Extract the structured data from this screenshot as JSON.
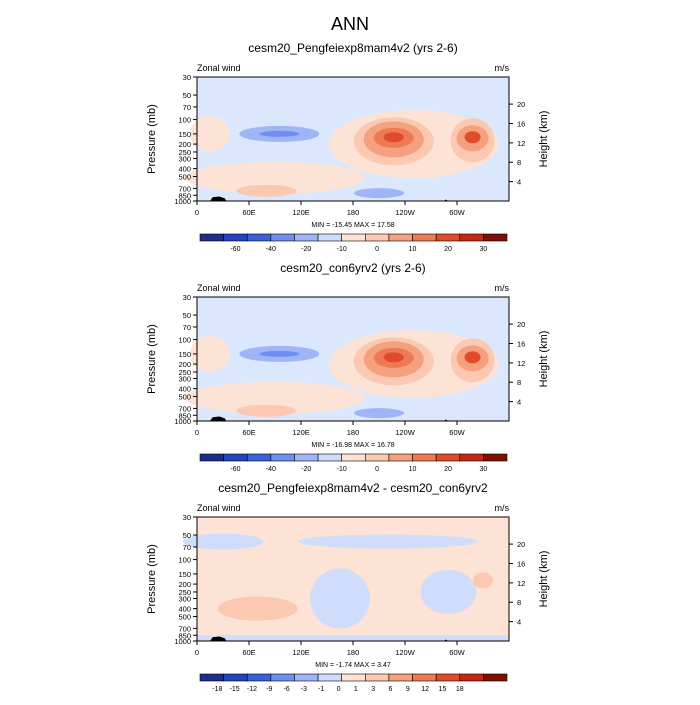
{
  "figure_title": "ANN",
  "colors": {
    "neg": [
      "#1f2d8a",
      "#2643c2",
      "#3a63da",
      "#6e8ef0",
      "#9fb5f5",
      "#cfdcfb"
    ],
    "pos": [
      "#fde3d6",
      "#fbc8b2",
      "#f5a17f",
      "#ee7a55",
      "#e24a2c",
      "#c42712",
      "#7e0f05"
    ],
    "background": "#dbe7fd",
    "terrain": "#000000"
  },
  "chart_data": [
    {
      "type": "contour",
      "title": "cesm20_Pengfeiexp8mam4v2 (yrs 2-6)",
      "left_label": "Zonal wind",
      "right_label": "m/s",
      "ylabel": "Pressure (mb)",
      "ylabel_right": "Height (km)",
      "x_ticks": [
        "0",
        "60E",
        "120E",
        "180",
        "120W",
        "60W"
      ],
      "y_ticks": [
        "30",
        "50",
        "70",
        "100",
        "150",
        "200",
        "250",
        "300",
        "400",
        "500",
        "700",
        "850",
        "1000"
      ],
      "y_right_ticks": [
        "20",
        "16",
        "12",
        "8",
        "4"
      ],
      "stats": "MIN = -15.45  MAX = 17.58",
      "min": -15.45,
      "max": 17.58,
      "colorbar_labels": [
        "-60",
        "-40",
        "-20",
        "-10",
        "0",
        "10",
        "20",
        "30"
      ]
    },
    {
      "type": "contour",
      "title": "cesm20_con6yrv2 (yrs 2-6)",
      "left_label": "Zonal wind",
      "right_label": "m/s",
      "ylabel": "Pressure (mb)",
      "ylabel_right": "Height (km)",
      "x_ticks": [
        "0",
        "60E",
        "120E",
        "180",
        "120W",
        "60W"
      ],
      "y_ticks": [
        "30",
        "50",
        "70",
        "100",
        "150",
        "200",
        "250",
        "300",
        "400",
        "500",
        "700",
        "850",
        "1000"
      ],
      "y_right_ticks": [
        "20",
        "16",
        "12",
        "8",
        "4"
      ],
      "stats": "MIN = -16.98  MAX = 16.78",
      "min": -16.98,
      "max": 16.78,
      "colorbar_labels": [
        "-60",
        "-40",
        "-20",
        "-10",
        "0",
        "10",
        "20",
        "30"
      ]
    },
    {
      "type": "contour",
      "title": "cesm20_Pengfeiexp8mam4v2 - cesm20_con6yrv2",
      "left_label": "Zonal wind",
      "right_label": "m/s",
      "ylabel": "Pressure (mb)",
      "ylabel_right": "Height (km)",
      "x_ticks": [
        "0",
        "60E",
        "120E",
        "180",
        "120W",
        "60W"
      ],
      "y_ticks": [
        "30",
        "50",
        "70",
        "100",
        "150",
        "200",
        "250",
        "300",
        "400",
        "500",
        "700",
        "850",
        "1000"
      ],
      "y_right_ticks": [
        "20",
        "16",
        "12",
        "8",
        "4"
      ],
      "stats": "MIN = -1.74  MAX = 3.47",
      "min": -1.74,
      "max": 3.47,
      "colorbar_labels": [
        "-18",
        "-15",
        "-12",
        "-9",
        "-6",
        "-3",
        "-1",
        "0",
        "1",
        "3",
        "6",
        "9",
        "12",
        "15",
        "18"
      ]
    }
  ]
}
